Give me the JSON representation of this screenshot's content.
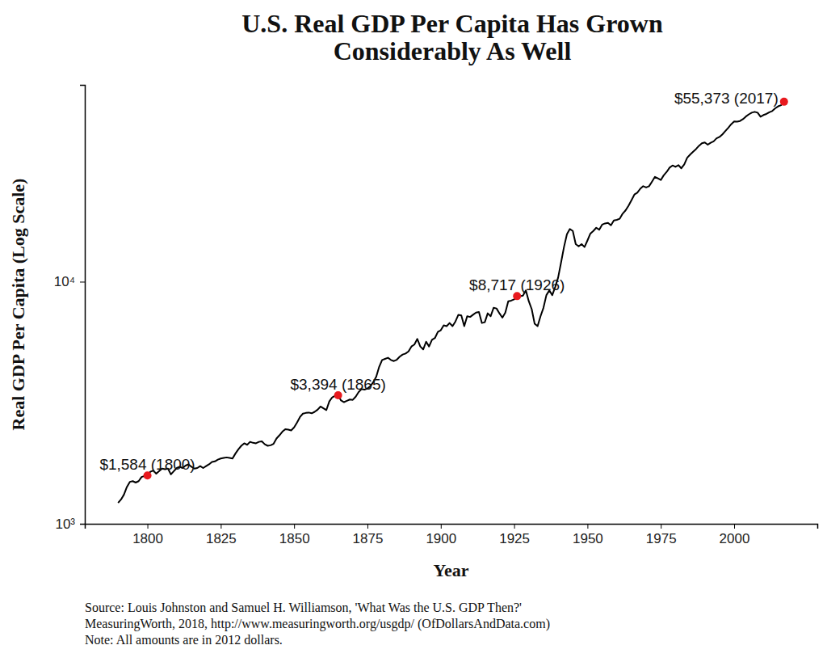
{
  "chart_data": {
    "type": "line",
    "title": [
      "U.S. Real GDP Per Capita Has Grown",
      "Considerably As Well"
    ],
    "x_label": "Year",
    "y_label": "Real GDP Per Capita (Log Scale)",
    "caption": [
      "Source: Louis Johnston and Samuel H. Williamson, 'What Was the U.S. GDP Then?'",
      "MeasuringWorth, 2018, http://www.measuringworth.org/usgdp/ (OfDollarsAndData.com)",
      "Note: All amounts are in 2012 dollars."
    ],
    "log": "y",
    "grid": false,
    "color": "#000000",
    "xlim": [
      1778.65,
      2028.35
    ],
    "xticks": [
      1800,
      1825,
      1850,
      1875,
      1900,
      1925,
      1950,
      1975,
      2000
    ],
    "ylim": [
      1000,
      65000
    ],
    "yticks": [
      {
        "value": 1000,
        "label": "10³"
      },
      {
        "value": 10000,
        "label": "10⁴"
      }
    ],
    "x": [
      1790,
      1791,
      1792,
      1793,
      1794,
      1795,
      1796,
      1797,
      1798,
      1799,
      1800,
      1801,
      1802,
      1803,
      1804,
      1805,
      1806,
      1807,
      1808,
      1809,
      1810,
      1811,
      1812,
      1813,
      1814,
      1815,
      1816,
      1817,
      1818,
      1819,
      1820,
      1821,
      1822,
      1823,
      1824,
      1825,
      1826,
      1827,
      1828,
      1829,
      1830,
      1831,
      1832,
      1833,
      1834,
      1835,
      1836,
      1837,
      1838,
      1839,
      1840,
      1841,
      1842,
      1843,
      1844,
      1845,
      1846,
      1847,
      1848,
      1849,
      1850,
      1851,
      1852,
      1853,
      1854,
      1855,
      1856,
      1857,
      1858,
      1859,
      1860,
      1861,
      1862,
      1863,
      1864,
      1865,
      1866,
      1867,
      1868,
      1869,
      1870,
      1871,
      1872,
      1873,
      1874,
      1875,
      1876,
      1877,
      1878,
      1879,
      1880,
      1881,
      1882,
      1883,
      1884,
      1885,
      1886,
      1887,
      1888,
      1889,
      1890,
      1891,
      1892,
      1893,
      1894,
      1895,
      1896,
      1897,
      1898,
      1899,
      1900,
      1901,
      1902,
      1903,
      1904,
      1905,
      1906,
      1907,
      1908,
      1909,
      1910,
      1911,
      1912,
      1913,
      1914,
      1915,
      1916,
      1917,
      1918,
      1919,
      1920,
      1921,
      1922,
      1923,
      1924,
      1925,
      1926,
      1927,
      1928,
      1929,
      1930,
      1931,
      1932,
      1933,
      1934,
      1935,
      1936,
      1937,
      1938,
      1939,
      1940,
      1941,
      1942,
      1943,
      1944,
      1945,
      1946,
      1947,
      1948,
      1949,
      1950,
      1951,
      1952,
      1953,
      1954,
      1955,
      1956,
      1957,
      1958,
      1959,
      1960,
      1961,
      1962,
      1963,
      1964,
      1965,
      1966,
      1967,
      1968,
      1969,
      1970,
      1971,
      1972,
      1973,
      1974,
      1975,
      1976,
      1977,
      1978,
      1979,
      1980,
      1981,
      1982,
      1983,
      1984,
      1985,
      1986,
      1987,
      1988,
      1989,
      1990,
      1991,
      1992,
      1993,
      1994,
      1995,
      1996,
      1997,
      1998,
      1999,
      2000,
      2001,
      2002,
      2003,
      2004,
      2005,
      2006,
      2007,
      2008,
      2009,
      2010,
      2011,
      2012,
      2013,
      2014,
      2015,
      2016,
      2017
    ],
    "values": [
      1220,
      1260,
      1320,
      1420,
      1490,
      1500,
      1480,
      1500,
      1560,
      1575,
      1584,
      1640,
      1660,
      1610,
      1650,
      1690,
      1680,
      1690,
      1600,
      1650,
      1700,
      1720,
      1700,
      1740,
      1760,
      1720,
      1690,
      1700,
      1730,
      1700,
      1730,
      1760,
      1800,
      1810,
      1840,
      1860,
      1870,
      1880,
      1870,
      1860,
      1950,
      2030,
      2100,
      2150,
      2120,
      2180,
      2160,
      2150,
      2180,
      2190,
      2130,
      2100,
      2110,
      2140,
      2250,
      2320,
      2400,
      2460,
      2450,
      2430,
      2500,
      2620,
      2760,
      2850,
      2870,
      2880,
      2860,
      2900,
      2960,
      3050,
      3000,
      2950,
      3200,
      3330,
      3380,
      3394,
      3230,
      3180,
      3220,
      3260,
      3250,
      3350,
      3500,
      3600,
      3580,
      3620,
      3700,
      3850,
      4050,
      4450,
      4750,
      4800,
      4850,
      4750,
      4700,
      4760,
      4900,
      5000,
      5050,
      5150,
      5400,
      5500,
      5800,
      5400,
      5250,
      5650,
      5400,
      5750,
      5850,
      6200,
      6300,
      6600,
      6550,
      6750,
      6550,
      6850,
      7300,
      7250,
      6550,
      7200,
      7150,
      7300,
      7450,
      7500,
      6750,
      6800,
      7400,
      7200,
      7800,
      7750,
      7400,
      7100,
      7450,
      8300,
      8350,
      8450,
      8717,
      8700,
      8750,
      9200,
      8300,
      7700,
      6700,
      6550,
      7200,
      7800,
      8800,
      9200,
      8800,
      9500,
      10400,
      12000,
      13900,
      15700,
      16500,
      16200,
      14300,
      14000,
      14300,
      13900,
      14800,
      15800,
      16200,
      16700,
      16400,
      17200,
      17400,
      17500,
      17100,
      17900,
      18000,
      18200,
      19100,
      19700,
      20600,
      21700,
      22900,
      23300,
      24200,
      24800,
      24500,
      24800,
      25900,
      27100,
      26700,
      26300,
      27500,
      28400,
      29600,
      30200,
      29800,
      30300,
      29400,
      30500,
      32500,
      33500,
      34400,
      35300,
      36400,
      37300,
      37600,
      36800,
      37500,
      38000,
      39100,
      39600,
      40600,
      41900,
      43200,
      44700,
      45900,
      45800,
      46100,
      46900,
      48100,
      49100,
      49900,
      50300,
      49900,
      48000,
      48800,
      49300,
      50100,
      50700,
      52000,
      53000,
      53600,
      55373
    ],
    "annotations": [
      {
        "x": 1800,
        "y": 1584,
        "label": "$1,584 (1800)"
      },
      {
        "x": 1865,
        "y": 3394,
        "label": "$3,394 (1865)"
      },
      {
        "x": 1926,
        "y": 8717,
        "label": "$8,717 (1926)"
      },
      {
        "x": 2017,
        "y": 55373,
        "label": "$55,373 (2017)"
      }
    ]
  }
}
